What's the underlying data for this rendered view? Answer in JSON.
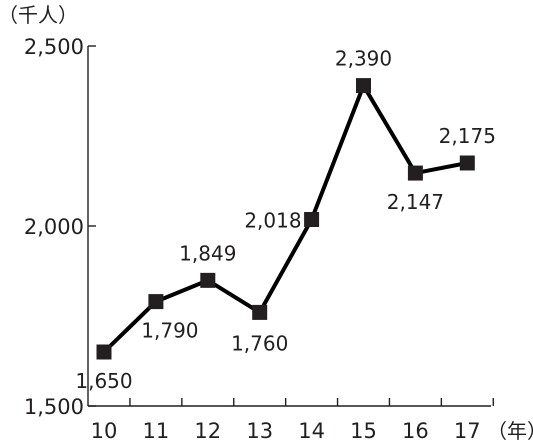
{
  "chart_data": {
    "type": "line",
    "title": "",
    "y_unit": "（千人）",
    "x_unit": "（年）",
    "categories": [
      "10",
      "11",
      "12",
      "13",
      "14",
      "15",
      "16",
      "17"
    ],
    "values": [
      1650,
      1790,
      1849,
      1760,
      2018,
      2390,
      2147,
      2175
    ],
    "data_labels": [
      "1,650",
      "1,790",
      "1,849",
      "1,760",
      "2,018",
      "2,390",
      "2,147",
      "2,175"
    ],
    "ylim": [
      1500,
      2500
    ],
    "yticks": [
      {
        "value": 1500,
        "label": "1,500"
      },
      {
        "value": 2000,
        "label": "2,000"
      },
      {
        "value": 2500,
        "label": "2,500"
      }
    ],
    "grid": false,
    "marker": "square",
    "line_color": "#000000"
  }
}
